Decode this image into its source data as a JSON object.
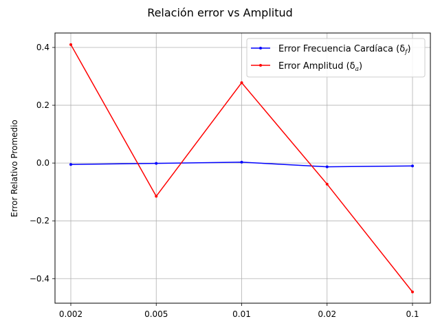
{
  "chart_data": {
    "type": "line",
    "title": "Relación error vs Amplitud",
    "xlabel": "",
    "ylabel": "Error Relativo Promedio",
    "categories": [
      "0.002",
      "0.005",
      "0.01",
      "0.02",
      "0.1"
    ],
    "yticks": [
      -0.4,
      -0.2,
      0.0,
      0.2,
      0.4
    ],
    "ytick_labels": [
      "−0.4",
      "−0.2",
      "0.0",
      "0.2",
      "0.4"
    ],
    "ylim": [
      -0.485,
      0.45
    ],
    "grid": true,
    "legend_position": "top-right",
    "series": [
      {
        "name": "Error Frecuencia Cardíaca (δ",
        "name_sub": "f",
        "name_close": ")",
        "color": "#0000ff",
        "values": [
          -0.005,
          -0.001,
          0.003,
          -0.013,
          -0.01
        ]
      },
      {
        "name": "Error Amplitud (δ",
        "name_sub": "a",
        "name_close": ")",
        "color": "#ff0000",
        "values": [
          0.41,
          -0.115,
          0.278,
          -0.073,
          -0.446
        ]
      }
    ]
  }
}
